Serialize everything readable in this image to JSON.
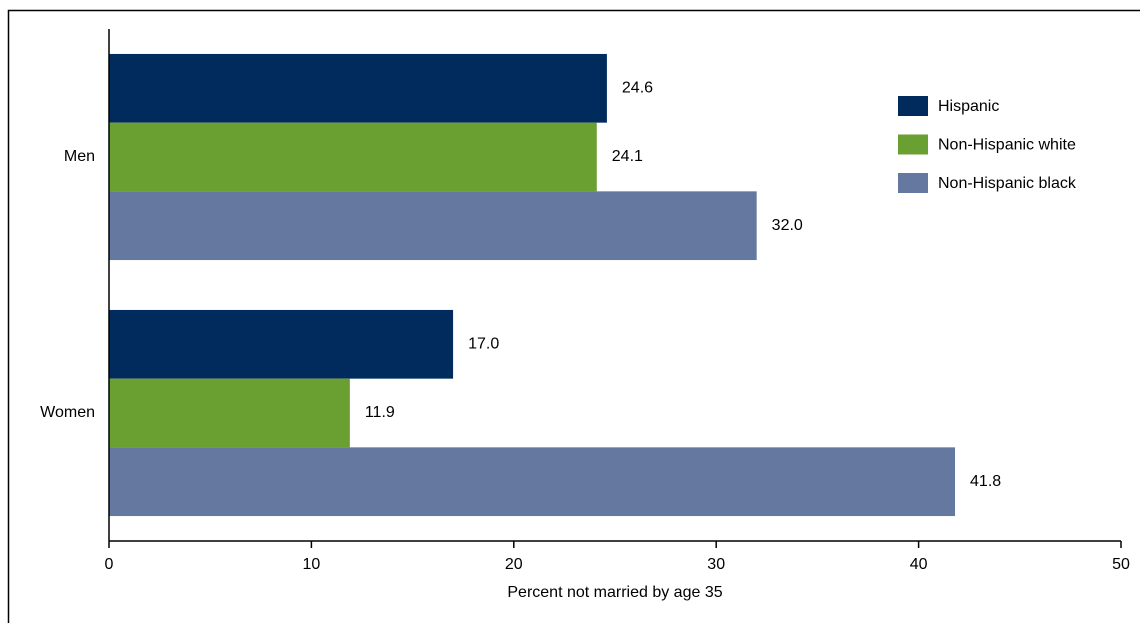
{
  "chart_data": {
    "type": "hbar",
    "xlabel": "Percent not married by age 35",
    "categories": [
      "Men",
      "Women"
    ],
    "series": [
      {
        "name": "Hispanic",
        "color": "#002b5c",
        "values": [
          24.6,
          17.0
        ],
        "value_labels": [
          "24.6",
          "17.0"
        ]
      },
      {
        "name": "Non-Hispanic white",
        "color": "#6a9f32",
        "values": [
          24.1,
          11.9
        ],
        "value_labels": [
          "24.1",
          "11.9"
        ]
      },
      {
        "name": "Non-Hispanic black",
        "color": "#6478a0",
        "values": [
          32.0,
          41.8
        ],
        "value_labels": [
          "32.0",
          "41.8"
        ]
      }
    ],
    "xlim": [
      0,
      50
    ],
    "xticks": [
      0,
      10,
      20,
      30,
      40,
      50
    ],
    "grid": false,
    "legend": "upper right"
  }
}
